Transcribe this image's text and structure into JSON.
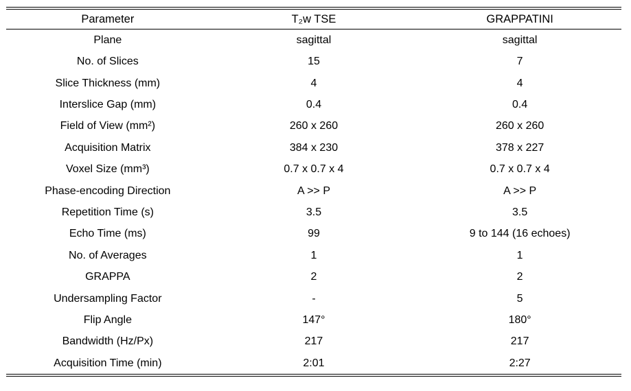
{
  "table": {
    "header": [
      "Parameter",
      "T₂w TSE",
      "GRAPPATINI"
    ],
    "rows": [
      {
        "parameter": "Plane",
        "t2w_tse": "sagittal",
        "grappatini": "sagittal"
      },
      {
        "parameter": "No. of Slices",
        "t2w_tse": "15",
        "grappatini": "7"
      },
      {
        "parameter": "Slice Thickness (mm)",
        "t2w_tse": "4",
        "grappatini": "4"
      },
      {
        "parameter": "Interslice Gap (mm)",
        "t2w_tse": "0.4",
        "grappatini": "0.4"
      },
      {
        "parameter": "Field of View (mm²)",
        "t2w_tse": "260 x 260",
        "grappatini": "260 x 260"
      },
      {
        "parameter": "Acquisition Matrix",
        "t2w_tse": "384 x 230",
        "grappatini": "378 x 227"
      },
      {
        "parameter": "Voxel Size (mm³)",
        "t2w_tse": "0.7 x 0.7 x 4",
        "grappatini": "0.7 x 0.7 x 4"
      },
      {
        "parameter": "Phase-encoding Direction",
        "t2w_tse": "A >> P",
        "grappatini": "A >> P"
      },
      {
        "parameter": "Repetition Time (s)",
        "t2w_tse": "3.5",
        "grappatini": "3.5"
      },
      {
        "parameter": "Echo Time (ms)",
        "t2w_tse": "99",
        "grappatini": "9 to 144 (16 echoes)"
      },
      {
        "parameter": "No. of Averages",
        "t2w_tse": "1",
        "grappatini": "1"
      },
      {
        "parameter": "GRAPPA",
        "t2w_tse": "2",
        "grappatini": "2"
      },
      {
        "parameter": "Undersampling Factor",
        "t2w_tse": "-",
        "grappatini": "5"
      },
      {
        "parameter": "Flip Angle",
        "t2w_tse": "147°",
        "grappatini": "180°"
      },
      {
        "parameter": "Bandwidth (Hz/Px)",
        "t2w_tse": "217",
        "grappatini": "217"
      },
      {
        "parameter": "Acquisition Time (min)",
        "t2w_tse": "2:01",
        "grappatini": "2:27"
      }
    ],
    "colors": {
      "text": "#000000",
      "background": "#ffffff",
      "rule": "#000000"
    }
  }
}
